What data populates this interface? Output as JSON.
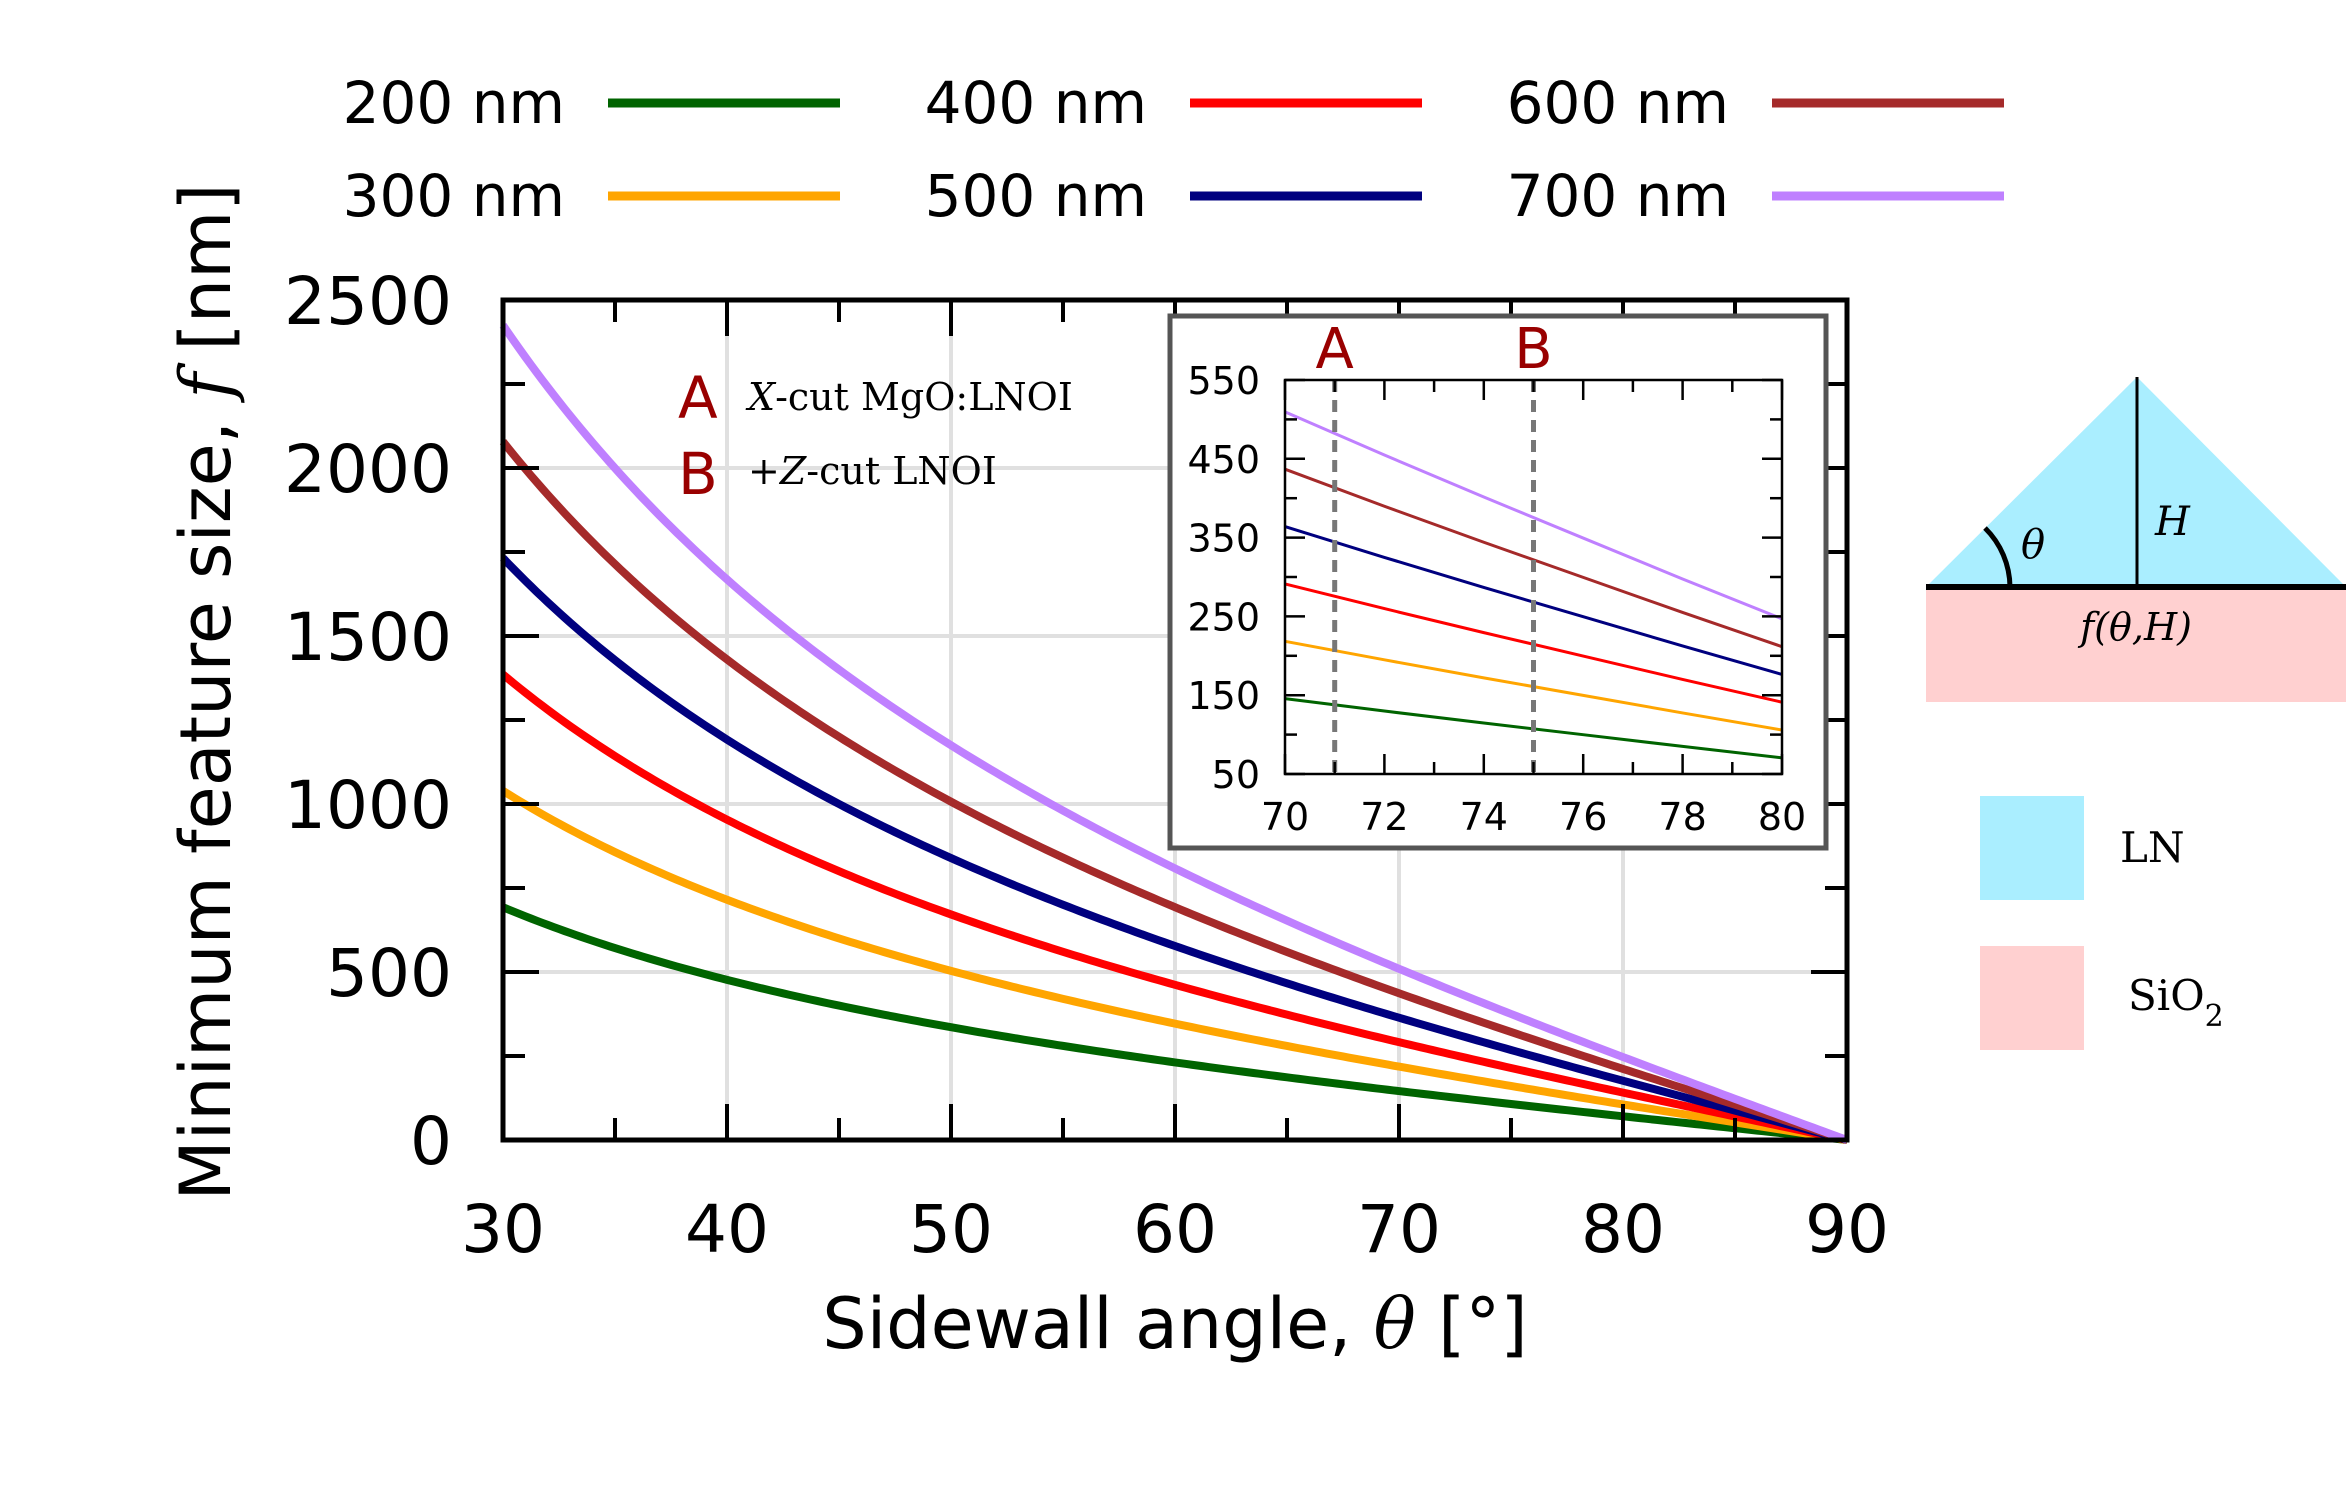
{
  "chart_data": [
    {
      "type": "line",
      "xlabel_prefix": "Sidewall angle, ",
      "xlabel_symbol": "θ",
      "xlabel_unit": " [°]",
      "ylabel_prefix": "Minimum feature size, ",
      "ylabel_symbol": "f",
      "ylabel_unit": " [nm]",
      "xlim": [
        30,
        90
      ],
      "ylim": [
        0,
        2500
      ],
      "xticks": [
        30,
        40,
        50,
        60,
        70,
        80,
        90
      ],
      "yticks": [
        0,
        500,
        1000,
        1500,
        2000,
        2500
      ],
      "grid": true,
      "legend_position": "top",
      "series": [
        {
          "name": "200 nm",
          "color": "#006400",
          "H": 200,
          "x": [
            30,
            35,
            40,
            45,
            50,
            55,
            60,
            65,
            70,
            75,
            80,
            85,
            90
          ],
          "values": [
            692.8,
            571.2,
            476.7,
            400.0,
            335.6,
            280.0,
            230.9,
            186.5,
            145.6,
            107.2,
            70.5,
            35.0,
            0
          ]
        },
        {
          "name": "300 nm",
          "color": "#ffa500",
          "H": 300,
          "x": [
            30,
            35,
            40,
            45,
            50,
            55,
            60,
            65,
            70,
            75,
            80,
            85,
            90
          ],
          "values": [
            1039.2,
            856.8,
            715.1,
            600.0,
            503.4,
            420.1,
            346.4,
            279.8,
            218.4,
            160.8,
            105.8,
            52.5,
            0
          ]
        },
        {
          "name": "400 nm",
          "color": "#ff0000",
          "H": 400,
          "x": [
            30,
            35,
            40,
            45,
            50,
            55,
            60,
            65,
            70,
            75,
            80,
            85,
            90
          ],
          "values": [
            1385.6,
            1142.5,
            953.4,
            800.0,
            671.3,
            560.1,
            461.9,
            373.1,
            291.2,
            214.4,
            141.1,
            70.0,
            0
          ]
        },
        {
          "name": "500 nm",
          "color": "#00007f",
          "H": 500,
          "x": [
            30,
            35,
            40,
            45,
            50,
            55,
            60,
            65,
            70,
            75,
            80,
            85,
            90
          ],
          "values": [
            1732.1,
            1428.1,
            1191.8,
            1000.0,
            839.1,
            700.2,
            577.4,
            466.3,
            364.0,
            268.0,
            176.3,
            87.5,
            0
          ]
        },
        {
          "name": "600 nm",
          "color": "#a52a2a",
          "H": 600,
          "x": [
            30,
            35,
            40,
            45,
            50,
            55,
            60,
            65,
            70,
            75,
            80,
            85,
            90
          ],
          "values": [
            2078.5,
            1713.7,
            1430.2,
            1200.0,
            1006.9,
            840.2,
            692.8,
            559.6,
            436.8,
            321.5,
            211.6,
            105.0,
            0
          ]
        },
        {
          "name": "700 nm",
          "color": "#bf80ff",
          "H": 700,
          "x": [
            30,
            35,
            40,
            45,
            50,
            55,
            60,
            65,
            70,
            75,
            80,
            85,
            90
          ],
          "values": [
            2424.9,
            1999.3,
            1668.5,
            1400.0,
            1174.7,
            980.2,
            808.3,
            652.8,
            509.6,
            375.1,
            246.9,
            122.5,
            0
          ]
        }
      ],
      "annotations": [
        {
          "letter": "A",
          "text_italic": "X",
          "text": "-cut MgO:LNOI",
          "color": "#990000"
        },
        {
          "letter": "B",
          "text_italic": "+Z",
          "text": "-cut LNOI",
          "color": "#990000"
        }
      ]
    },
    {
      "type": "line",
      "role": "inset",
      "xlim": [
        70,
        80
      ],
      "ylim": [
        50,
        550
      ],
      "xticks": [
        70,
        72,
        74,
        76,
        78,
        80
      ],
      "yticks": [
        50,
        150,
        250,
        350,
        450,
        550
      ],
      "vlines": [
        {
          "label": "A",
          "x": 71,
          "color": "#990000"
        },
        {
          "label": "B",
          "x": 75,
          "color": "#990000"
        }
      ],
      "series": [
        {
          "name": "200 nm",
          "color": "#006400",
          "x": [
            70,
            72,
            74,
            76,
            78,
            80
          ],
          "values": [
            145.6,
            129.9,
            114.7,
            99.9,
            85.0,
            70.5
          ]
        },
        {
          "name": "300 nm",
          "color": "#ffa500",
          "x": [
            70,
            72,
            74,
            76,
            78,
            80
          ],
          "values": [
            218.4,
            194.9,
            172.0,
            149.8,
            127.5,
            105.8
          ]
        },
        {
          "name": "400 nm",
          "color": "#ff0000",
          "x": [
            70,
            72,
            74,
            76,
            78,
            80
          ],
          "values": [
            291.2,
            259.9,
            229.4,
            199.7,
            170.0,
            141.1
          ]
        },
        {
          "name": "500 nm",
          "color": "#00007f",
          "x": [
            70,
            72,
            74,
            76,
            78,
            80
          ],
          "values": [
            364.0,
            324.9,
            286.7,
            249.6,
            212.5,
            176.3
          ]
        },
        {
          "name": "600 nm",
          "color": "#a52a2a",
          "x": [
            70,
            72,
            74,
            76,
            78,
            80
          ],
          "values": [
            436.8,
            389.8,
            344.1,
            299.5,
            255.0,
            211.6
          ]
        },
        {
          "name": "700 nm",
          "color": "#bf80ff",
          "x": [
            70,
            72,
            74,
            76,
            78,
            80
          ],
          "values": [
            509.6,
            454.8,
            401.5,
            349.4,
            297.5,
            246.9
          ]
        }
      ]
    }
  ],
  "diagram": {
    "theta_label": "θ",
    "height_label": "H",
    "width_label": "f(θ,H)",
    "ln_color": "#aaeeff",
    "sio2_color": "#ffd0d0",
    "legend": [
      {
        "label": "LN",
        "color": "#aaeeff"
      },
      {
        "label": "SiO",
        "subscript": "2",
        "color": "#ffd0d0"
      }
    ]
  }
}
